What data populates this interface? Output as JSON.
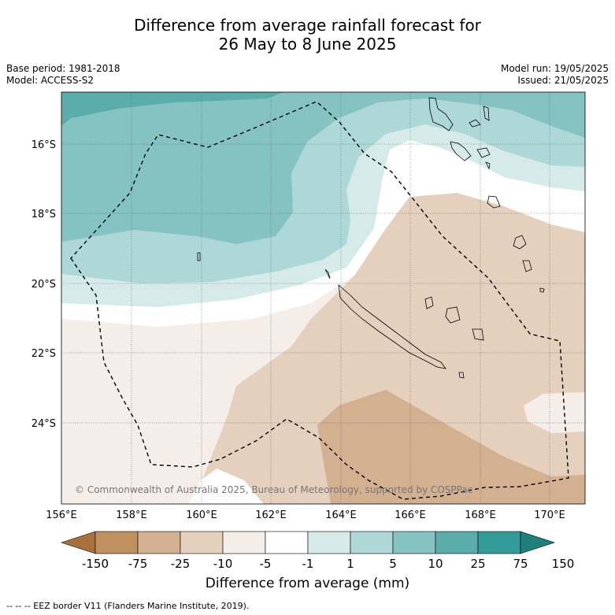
{
  "title_line1": "Difference from average rainfall forecast for",
  "title_line2": "26 May to 8 June 2025",
  "meta": {
    "base_period": "Base period: 1981-2018",
    "model": "Model: ACCESS-S2",
    "model_run": "Model run: 19/05/2025",
    "issued": "Issued: 21/05/2025"
  },
  "map": {
    "lon_labels": [
      "156°E",
      "158°E",
      "160°E",
      "162°E",
      "164°E",
      "166°E",
      "168°E",
      "170°E"
    ],
    "lat_labels": [
      "16°S",
      "18°S",
      "20°S",
      "22°S",
      "24°S"
    ],
    "copyright": "© Commonwealth of Australia 2025, Bureau of Meteorology, supported by COSPPac"
  },
  "colorbar": {
    "ticks": [
      "-150",
      "-75",
      "-25",
      "-10",
      "-5",
      "-1",
      "1",
      "5",
      "10",
      "25",
      "75",
      "150"
    ],
    "colors": [
      "#a8703a",
      "#c0915f",
      "#d3b090",
      "#e4d0bc",
      "#f4ede8",
      "#ffffff",
      "#d6ebe9",
      "#add8d7",
      "#84c3c2",
      "#5aadab",
      "#349c98",
      "#1f7f7a"
    ],
    "title": "Difference from average (mm)"
  },
  "footer": "--  --  -- EEZ border V11 (Flanders Marine Institute, 2019)."
}
